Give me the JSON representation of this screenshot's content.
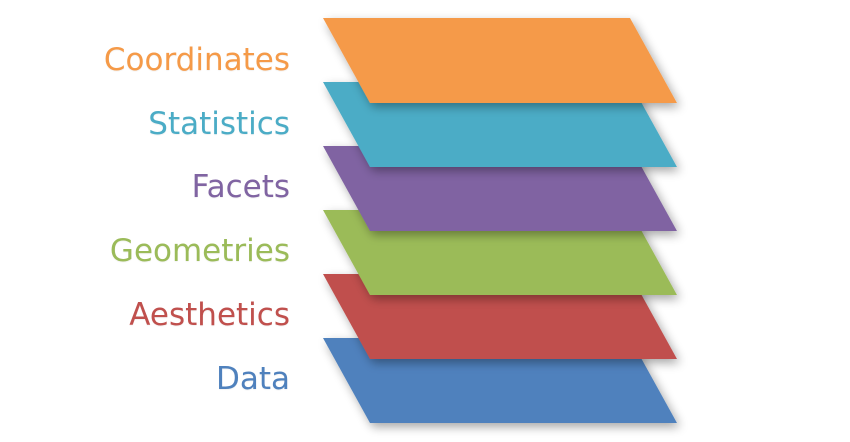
{
  "layers": [
    {
      "label": "Coordinates",
      "color": "#f59a48"
    },
    {
      "label": "Statistics",
      "color": "#4bacc6"
    },
    {
      "label": "Facets",
      "color": "#8064a2"
    },
    {
      "label": "Geometries",
      "color": "#9bbb59"
    },
    {
      "label": "Aesthetics",
      "color": "#c0504d"
    },
    {
      "label": "Data",
      "color": "#4f81bd"
    }
  ]
}
